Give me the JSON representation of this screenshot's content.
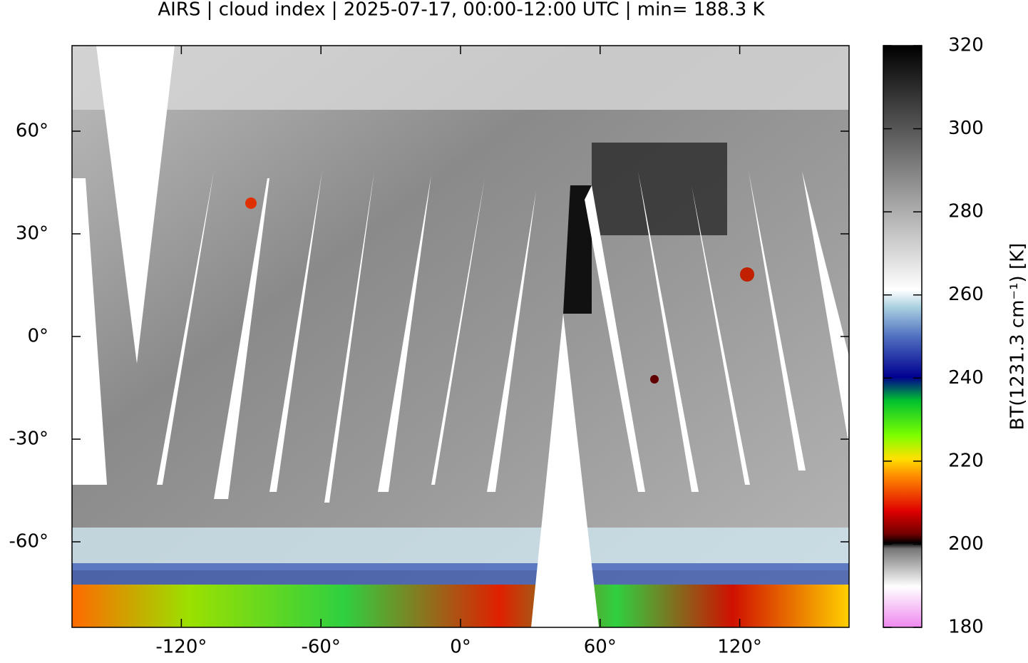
{
  "chart_data": {
    "type": "map",
    "title": "AIRS | cloud index | 2025-07-17, 00:00-12:00 UTC | min= 188.3 K",
    "xlim": [
      -167,
      167
    ],
    "ylim": [
      -85,
      85
    ],
    "xticks": [
      {
        "value": -120,
        "label": "-120°"
      },
      {
        "value": -60,
        "label": "-60°"
      },
      {
        "value": 0,
        "label": "0°"
      },
      {
        "value": 60,
        "label": "60°"
      },
      {
        "value": 120,
        "label": "120°"
      }
    ],
    "yticks": [
      {
        "value": -60,
        "label": "-60°"
      },
      {
        "value": -30,
        "label": "-30°"
      },
      {
        "value": 0,
        "label": "0°"
      },
      {
        "value": 30,
        "label": "30°"
      },
      {
        "value": 60,
        "label": "60°"
      }
    ],
    "colorbar": {
      "label": "BT(1231.3 cm⁻¹) [K]",
      "lim": [
        180,
        320
      ],
      "ticks": [
        180,
        200,
        220,
        240,
        260,
        280,
        300,
        320
      ]
    }
  }
}
